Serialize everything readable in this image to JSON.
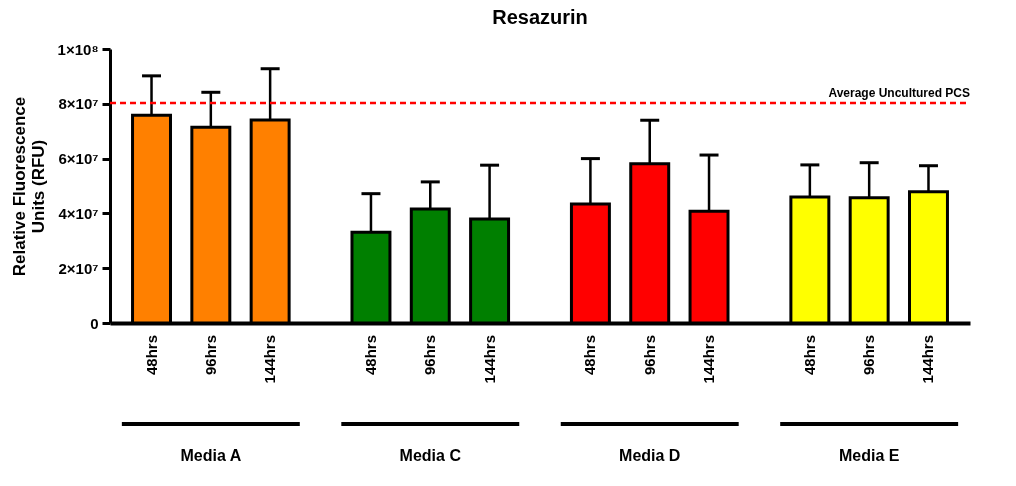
{
  "chart_data": {
    "type": "bar",
    "title": "Resazurin",
    "ylabel": "Relative Fluorescence Units (RFU)",
    "categories": [
      "48hrs",
      "96hrs",
      "144hrs",
      "48hrs",
      "96hrs",
      "144hrs",
      "48hrs",
      "96hrs",
      "144hrs",
      "48hrs",
      "96hrs",
      "144hrs"
    ],
    "values": [
      75800000.0,
      71400000.0,
      74100000.0,
      33100000.0,
      41600000.0,
      38000000.0,
      43400000.0,
      58100000.0,
      40800000.0,
      46000000.0,
      45700000.0,
      47900000.0
    ],
    "errors": [
      [
        75800000.0,
        90200000.0
      ],
      [
        71400000.0,
        84200000.0
      ],
      [
        74100000.0,
        92800000.0
      ],
      [
        33100000.0,
        47200000.0
      ],
      [
        41600000.0,
        51500000.0
      ],
      [
        38000000.0,
        57600000.0
      ],
      [
        43400000.0,
        60000000.0
      ],
      [
        58100000.0,
        74000000.0
      ],
      [
        40800000.0,
        61300000.0
      ],
      [
        46000000.0,
        57700000.0
      ],
      [
        45700000.0,
        58500000.0
      ],
      [
        47900000.0,
        57400000.0
      ]
    ],
    "colors": [
      "#ff8000",
      "#ff8000",
      "#ff8000",
      "#007f00",
      "#007f00",
      "#007f00",
      "#ff0000",
      "#ff0000",
      "#ff0000",
      "#ffff00",
      "#ffff00",
      "#ffff00"
    ],
    "ylim": [
      0,
      100000000
    ],
    "yticks": [
      0,
      {
        "value": 20000000,
        "label": "2×10⁷"
      },
      {
        "value": 40000000,
        "label": "4×10⁷"
      },
      {
        "value": 60000000,
        "label": "6×10⁷"
      },
      {
        "value": 80000000,
        "label": "8×10⁷"
      },
      {
        "value": 100000000,
        "label": "1×10⁸"
      }
    ],
    "ref_lines": [
      {
        "axis": "y",
        "value": 80300000,
        "label": "Average Uncultured PCS",
        "color": "#ff0000",
        "line_style": "dashed"
      }
    ],
    "annotations": [
      "Media A",
      "Media C",
      "Media D",
      "Media E"
    ],
    "grid": false
  }
}
